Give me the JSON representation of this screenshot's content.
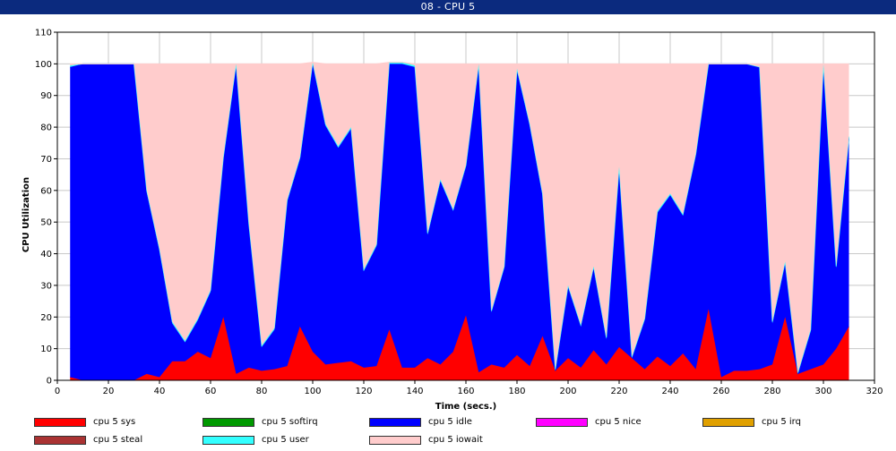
{
  "window": {
    "title": "08 - CPU 5"
  },
  "chart_data": {
    "type": "area",
    "stacked": true,
    "xlabel": "Time (secs.)",
    "ylabel": "CPU Utilization",
    "xlim": [
      0,
      320
    ],
    "ylim": [
      0,
      110
    ],
    "xticks": [
      0,
      20,
      40,
      60,
      80,
      100,
      120,
      140,
      160,
      180,
      200,
      220,
      240,
      260,
      280,
      300,
      320
    ],
    "yticks": [
      0,
      10,
      20,
      30,
      40,
      50,
      60,
      70,
      80,
      90,
      100,
      110
    ],
    "grid": true,
    "legend_position": "bottom",
    "x": [
      5,
      10,
      15,
      20,
      25,
      30,
      35,
      40,
      45,
      50,
      55,
      60,
      65,
      70,
      75,
      80,
      85,
      90,
      95,
      100,
      105,
      110,
      115,
      120,
      125,
      130,
      135,
      140,
      145,
      150,
      155,
      160,
      165,
      170,
      175,
      180,
      185,
      190,
      195,
      200,
      205,
      210,
      215,
      220,
      225,
      230,
      235,
      240,
      245,
      250,
      255,
      260,
      265,
      270,
      275,
      280,
      285,
      290,
      295,
      300,
      305,
      310
    ],
    "series": [
      {
        "name": "cpu 5 sys",
        "color": "#ff0000",
        "values": [
          1,
          0,
          0,
          0,
          0,
          0,
          2,
          1,
          6,
          6,
          9,
          7,
          20,
          2,
          4,
          3,
          3.5,
          4.5,
          17,
          9,
          5,
          5.5,
          6,
          4,
          4.5,
          16,
          4,
          4,
          7,
          5,
          9,
          20.5,
          2.5,
          5,
          4,
          8,
          4.5,
          14,
          3,
          7,
          4,
          9.5,
          5,
          10.5,
          7,
          3.5,
          7.5,
          4.5,
          8.5,
          3.5,
          22.5,
          1,
          3,
          3,
          3.5,
          5,
          20,
          2,
          3.5,
          5,
          10,
          17
        ]
      },
      {
        "name": "cpu 5 softirq",
        "color": "#009900",
        "values": [
          0,
          0,
          0,
          0,
          0,
          0,
          0,
          0,
          0,
          0,
          0,
          0,
          0,
          0,
          0,
          0,
          0,
          0,
          0,
          0,
          0,
          0,
          0,
          0,
          0,
          0,
          0,
          0,
          0,
          0,
          0,
          0,
          0,
          0,
          0,
          0,
          0,
          0,
          0,
          0,
          0,
          0,
          0,
          0,
          0,
          0,
          0,
          0,
          0,
          0,
          0,
          0,
          0,
          0,
          0,
          0,
          0,
          0,
          0,
          0,
          0,
          0
        ]
      },
      {
        "name": "cpu 5 idle",
        "color": "#0000ff",
        "values": [
          98,
          100,
          100,
          100,
          100,
          100,
          57.5,
          40,
          12,
          6,
          10,
          21,
          50,
          97.5,
          45,
          7.5,
          12.5,
          52,
          53,
          91,
          75.5,
          68,
          73.5,
          30.5,
          38,
          84,
          96,
          95,
          39,
          58,
          44.5,
          47,
          97,
          16.5,
          31.5,
          90,
          76,
          44.5,
          0,
          22.5,
          13,
          26,
          8,
          56.5,
          0,
          15.5,
          45.5,
          54,
          43.5,
          67.5,
          77.5,
          99,
          97,
          97,
          95.5,
          13,
          17,
          0,
          12,
          95,
          25.5,
          59.5
        ]
      },
      {
        "name": "cpu 5 nice",
        "color": "#ff00ff",
        "values": [
          0,
          0,
          0,
          0,
          0,
          0,
          0,
          0,
          0,
          0,
          0,
          0,
          0,
          0,
          0,
          0,
          0,
          0,
          0,
          0,
          0,
          0,
          0,
          0,
          0,
          0,
          0,
          0,
          0,
          0,
          0,
          0,
          0,
          0,
          0,
          0,
          0,
          0,
          0,
          0,
          0,
          0,
          0,
          0,
          0,
          0,
          0,
          0,
          0,
          0,
          0,
          0,
          0,
          0,
          0,
          0,
          0,
          0,
          0,
          0,
          0,
          0
        ]
      },
      {
        "name": "cpu 5 irq",
        "color": "#e0a000",
        "values": [
          0,
          0,
          0,
          0,
          0,
          0,
          0,
          0,
          0,
          0,
          0,
          0,
          0,
          0,
          0,
          0,
          0,
          0,
          0,
          0,
          0,
          0,
          0,
          0,
          0,
          0,
          0,
          0,
          0,
          0,
          0,
          0,
          0,
          0,
          0,
          0,
          0,
          0,
          0,
          0,
          0,
          0,
          0,
          0,
          0,
          0,
          0,
          0,
          0,
          0,
          0,
          0,
          0,
          0,
          0,
          0,
          0,
          0,
          0,
          0,
          0,
          0
        ]
      },
      {
        "name": "cpu 5 steal",
        "color": "#aa3333",
        "values": [
          0,
          0,
          0,
          0,
          0,
          0,
          0,
          0,
          0,
          0,
          0,
          0,
          0,
          0,
          0,
          0,
          0,
          0,
          0,
          0,
          0,
          0,
          0,
          0,
          0,
          0,
          0,
          0,
          0,
          0,
          0,
          0,
          0,
          0,
          0,
          0,
          0,
          0,
          0,
          0,
          0,
          0,
          0,
          0,
          0,
          0,
          0,
          0,
          0,
          0,
          0,
          0,
          0,
          0,
          0,
          0,
          0,
          0,
          0,
          0,
          0,
          0
        ]
      },
      {
        "name": "cpu 5 user",
        "color": "#33ffff",
        "values": [
          0.5,
          0,
          0,
          0,
          0,
          0,
          0.5,
          0.5,
          0.5,
          0.5,
          0.5,
          0.5,
          0.5,
          0.5,
          0.5,
          0.5,
          0.5,
          0.5,
          0.5,
          0.5,
          0.5,
          0.5,
          0.5,
          0.5,
          0.5,
          0.5,
          0.5,
          0.5,
          0.5,
          0.5,
          0.5,
          0.5,
          0.5,
          0.5,
          0.5,
          0.5,
          0.5,
          0.5,
          0.5,
          0.5,
          0.5,
          0.5,
          0.5,
          0.5,
          0.5,
          0.5,
          0.5,
          0.5,
          0.5,
          0.5,
          0,
          0,
          0,
          0,
          0,
          0.5,
          0.5,
          0.5,
          0.5,
          0,
          0.5,
          0.5
        ]
      },
      {
        "name": "cpu 5 iowait",
        "color": "#ffcccc",
        "values": [
          0.5,
          0,
          0,
          0,
          0,
          0,
          40,
          58.5,
          81.5,
          87.5,
          80.5,
          71.5,
          29.5,
          0,
          50.5,
          89,
          83.5,
          43,
          29.5,
          0,
          19,
          26,
          20,
          65,
          57,
          0,
          0,
          0.5,
          53.5,
          36.5,
          46,
          32,
          0,
          78,
          64,
          1.5,
          19,
          41,
          96.5,
          70,
          82.5,
          64,
          86.5,
          32.5,
          92.5,
          80.5,
          46.5,
          41,
          47.5,
          28.5,
          0,
          0,
          0,
          0,
          1,
          81.5,
          62.5,
          97.5,
          84,
          0,
          64,
          23
        ]
      }
    ]
  }
}
